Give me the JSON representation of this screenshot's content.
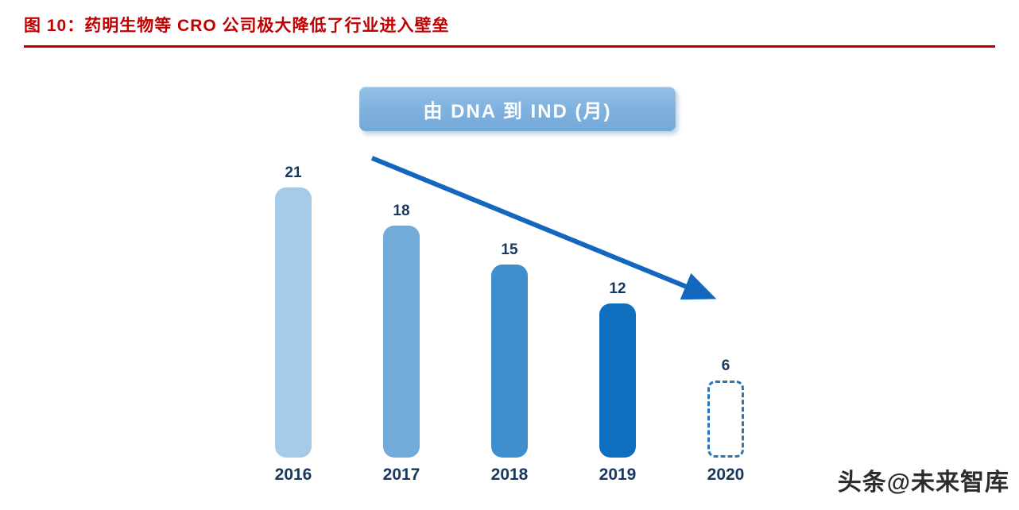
{
  "header": {
    "title": "图 10：药明生物等 CRO 公司极大降低了行业进入壁垒",
    "accent_color": "#C00000"
  },
  "chart_data": {
    "type": "bar",
    "title": "由 DNA 到 IND (月)",
    "categories": [
      "2016",
      "2017",
      "2018",
      "2019",
      "2020"
    ],
    "values": [
      21,
      18,
      15,
      12,
      6
    ],
    "xlabel": "",
    "ylabel": "",
    "ylim": [
      0,
      22
    ],
    "grid": false,
    "legend": false,
    "bar_colors": [
      "#A6CBE9",
      "#72AAD8",
      "#3F8FCE",
      "#0E6FBE",
      "dashed"
    ],
    "dashed_border_color": "#2E75B6",
    "label_color": "#17375E",
    "annotations": [
      {
        "type": "arrow",
        "direction": "down-right",
        "color": "#1467BF",
        "meaning": "declining trend from 2016 to 2020"
      }
    ]
  },
  "watermark": {
    "text": "头条@未来智库"
  }
}
